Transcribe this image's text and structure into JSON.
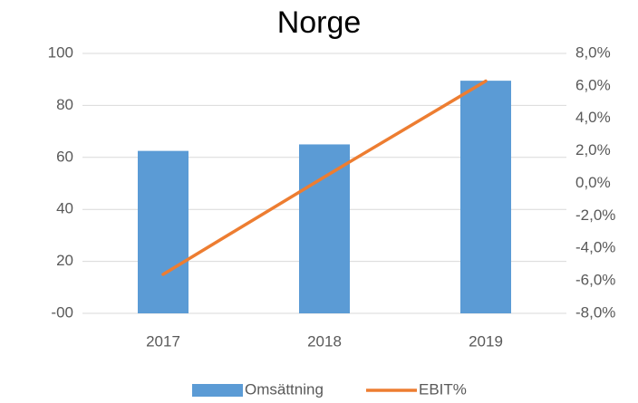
{
  "chart_data": {
    "type": "bar",
    "title": "Norge",
    "categories": [
      "2017",
      "2018",
      "2019"
    ],
    "series": [
      {
        "name": "Omsättning",
        "type": "bar",
        "color": "#5b9bd5",
        "values": [
          62.5,
          65,
          89.5
        ]
      },
      {
        "name": "EBIT%",
        "type": "line",
        "axis": "y2",
        "color": "#ed7d31",
        "values": [
          -5.6,
          0.4,
          6.3
        ]
      }
    ],
    "ylim": [
      0,
      100
    ],
    "yticks": [
      {
        "value": 0,
        "label": "-00"
      },
      20,
      40,
      60,
      80,
      100
    ],
    "y2lim": [
      -8,
      8
    ],
    "y2ticks": [
      {
        "value": -8,
        "label": "-8,0%"
      },
      {
        "value": -6,
        "label": "-6,0%"
      },
      {
        "value": -4,
        "label": "-4,0%"
      },
      {
        "value": -2,
        "label": "-2,0%"
      },
      {
        "value": 0,
        "label": "0,0%"
      },
      {
        "value": 2,
        "label": "2,0%"
      },
      {
        "value": 4,
        "label": "4,0%"
      },
      {
        "value": 6,
        "label": "6,0%"
      },
      {
        "value": 8,
        "label": "8,0%"
      }
    ],
    "grid": true,
    "legend": "bottom"
  }
}
